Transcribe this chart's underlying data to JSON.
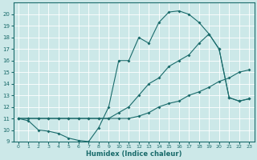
{
  "xlabel": "Humidex (Indice chaleur)",
  "bg_color": "#cce8e8",
  "line_color": "#1a6b6b",
  "xlim": [
    -0.5,
    23.5
  ],
  "ylim": [
    9,
    21
  ],
  "xticks": [
    0,
    1,
    2,
    3,
    4,
    5,
    6,
    7,
    8,
    9,
    10,
    11,
    12,
    13,
    14,
    15,
    16,
    17,
    18,
    19,
    20,
    21,
    22,
    23
  ],
  "yticks": [
    9,
    10,
    11,
    12,
    13,
    14,
    15,
    16,
    17,
    18,
    19,
    20
  ],
  "series": [
    {
      "x": [
        0,
        1,
        2,
        3,
        4,
        5,
        6,
        7,
        8,
        9,
        10,
        11,
        12,
        13,
        14,
        15,
        16,
        17,
        18,
        19,
        20,
        21,
        22,
        23
      ],
      "y": [
        11,
        11,
        11,
        11,
        11,
        11,
        11,
        11,
        11,
        11,
        11,
        11,
        11.2,
        11.5,
        12,
        12.3,
        12.5,
        13,
        13.3,
        13.7,
        14.2,
        14.5,
        15,
        15.2
      ]
    },
    {
      "x": [
        0,
        1,
        2,
        3,
        4,
        5,
        6,
        7,
        8,
        9,
        10,
        11,
        12,
        13,
        14,
        15,
        16,
        17,
        18,
        19,
        20,
        21,
        22,
        23
      ],
      "y": [
        11,
        11,
        11,
        11,
        11,
        11,
        11,
        11,
        11,
        11,
        11.5,
        12,
        13,
        14,
        14.5,
        15.5,
        16,
        16.5,
        17.5,
        18.3,
        17,
        12.8,
        12.5,
        12.7
      ]
    },
    {
      "x": [
        0,
        1,
        2,
        3,
        4,
        5,
        6,
        7,
        8,
        9,
        10,
        11,
        12,
        13,
        14,
        15,
        16,
        17,
        18,
        19,
        20,
        21,
        22,
        23
      ],
      "y": [
        11,
        10.8,
        10,
        9.9,
        9.7,
        9.3,
        9.1,
        9,
        10.2,
        12,
        16,
        16,
        18,
        17.5,
        19.3,
        20.2,
        20.3,
        20,
        19.3,
        18.3,
        17,
        12.8,
        12.5,
        12.7
      ]
    }
  ]
}
